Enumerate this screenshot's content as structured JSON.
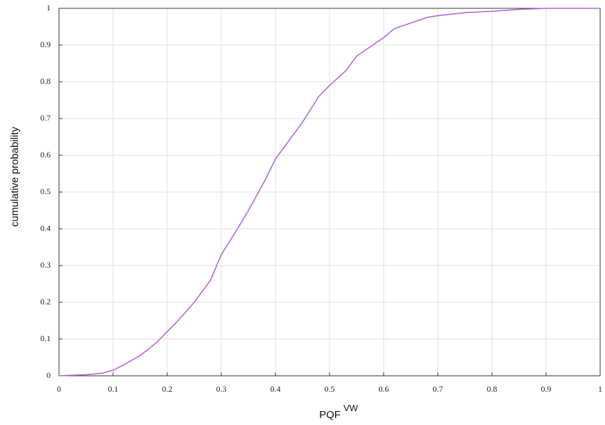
{
  "chart_data": {
    "type": "line",
    "xlabel": "PQF",
    "xlabel_superscript": "VW",
    "ylabel": "cumulative probability",
    "x": [
      0,
      0.05,
      0.08,
      0.1,
      0.12,
      0.15,
      0.18,
      0.2,
      0.22,
      0.25,
      0.28,
      0.3,
      0.33,
      0.35,
      0.38,
      0.4,
      0.42,
      0.45,
      0.48,
      0.5,
      0.53,
      0.55,
      0.58,
      0.6,
      0.62,
      0.65,
      0.68,
      0.7,
      0.75,
      0.8,
      0.85,
      0.9,
      1.0
    ],
    "values": [
      0,
      0.003,
      0.007,
      0.015,
      0.03,
      0.055,
      0.09,
      0.12,
      0.15,
      0.2,
      0.26,
      0.33,
      0.4,
      0.45,
      0.53,
      0.59,
      0.63,
      0.69,
      0.76,
      0.79,
      0.83,
      0.87,
      0.9,
      0.92,
      0.945,
      0.96,
      0.975,
      0.98,
      0.988,
      0.992,
      0.997,
      1.0,
      1.0
    ],
    "color": "#b565d9",
    "xlim": [
      0,
      1
    ],
    "xticks": [
      0,
      0.1,
      0.2,
      0.3,
      0.4,
      0.5,
      0.6,
      0.7,
      0.8,
      0.9,
      1
    ],
    "ylim": [
      0,
      1
    ],
    "yticks": [
      0,
      0.1,
      0.2,
      0.3,
      0.4,
      0.5,
      0.6,
      0.7,
      0.8,
      0.9,
      1
    ],
    "grid": true
  }
}
